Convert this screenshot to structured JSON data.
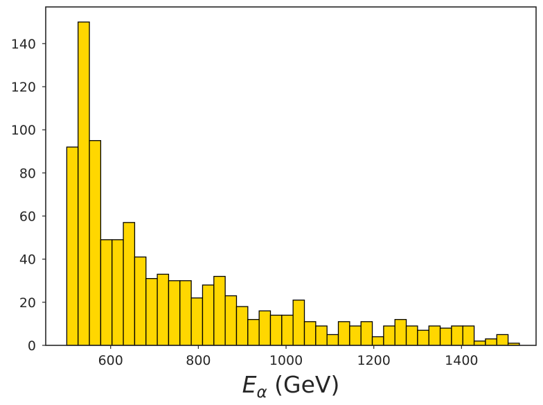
{
  "chart_data": {
    "type": "bar",
    "title": "",
    "xlabel": "E_α (GeV)",
    "xlabel_main": "E",
    "xlabel_sub": "α",
    "xlabel_unit": " (GeV)",
    "ylabel": "",
    "xlim": [
      452,
      1570
    ],
    "ylim": [
      0,
      157
    ],
    "bin_start": 500,
    "bin_width": 25.8,
    "values": [
      92,
      150,
      95,
      49,
      49,
      57,
      41,
      31,
      33,
      30,
      30,
      22,
      28,
      32,
      23,
      18,
      12,
      16,
      14,
      14,
      21,
      11,
      9,
      5,
      11,
      9,
      11,
      4,
      9,
      12,
      9,
      7,
      9,
      8,
      9,
      9,
      2,
      3,
      5,
      1
    ],
    "x_ticks": [
      600,
      800,
      1000,
      1200,
      1400
    ],
    "y_ticks": [
      0,
      20,
      40,
      60,
      80,
      100,
      120,
      140
    ],
    "bar_color": "#FFD700",
    "edge_color": "#000000",
    "axis_color": "#262626",
    "grid": false,
    "legend": "none"
  }
}
